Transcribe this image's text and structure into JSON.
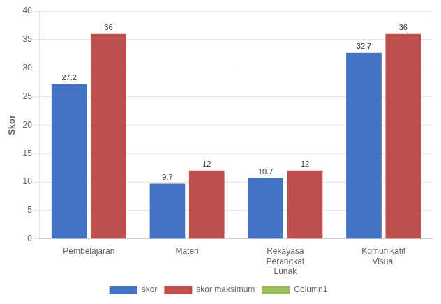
{
  "chart_data": {
    "type": "bar",
    "categories": [
      "Pembelajaran",
      "Materi",
      "Rekayasa\nPerangkat\nLunak",
      "Komunikatif\nVisual"
    ],
    "series": [
      {
        "name": "skor",
        "color": "#4472C4",
        "values": [
          27.2,
          9.7,
          10.7,
          32.7
        ]
      },
      {
        "name": "skor maksimum",
        "color": "#C0504D",
        "values": [
          36,
          12,
          12,
          36
        ]
      },
      {
        "name": "Column1",
        "color": "#9BBB59",
        "values": [
          null,
          null,
          null,
          null
        ]
      }
    ],
    "ylabel": "Skor",
    "ylim": [
      0,
      40
    ],
    "yticks": [
      0,
      5,
      10,
      15,
      20,
      25,
      30,
      35,
      40
    ],
    "grid": true,
    "legend": "bottom",
    "data_labels": true
  }
}
